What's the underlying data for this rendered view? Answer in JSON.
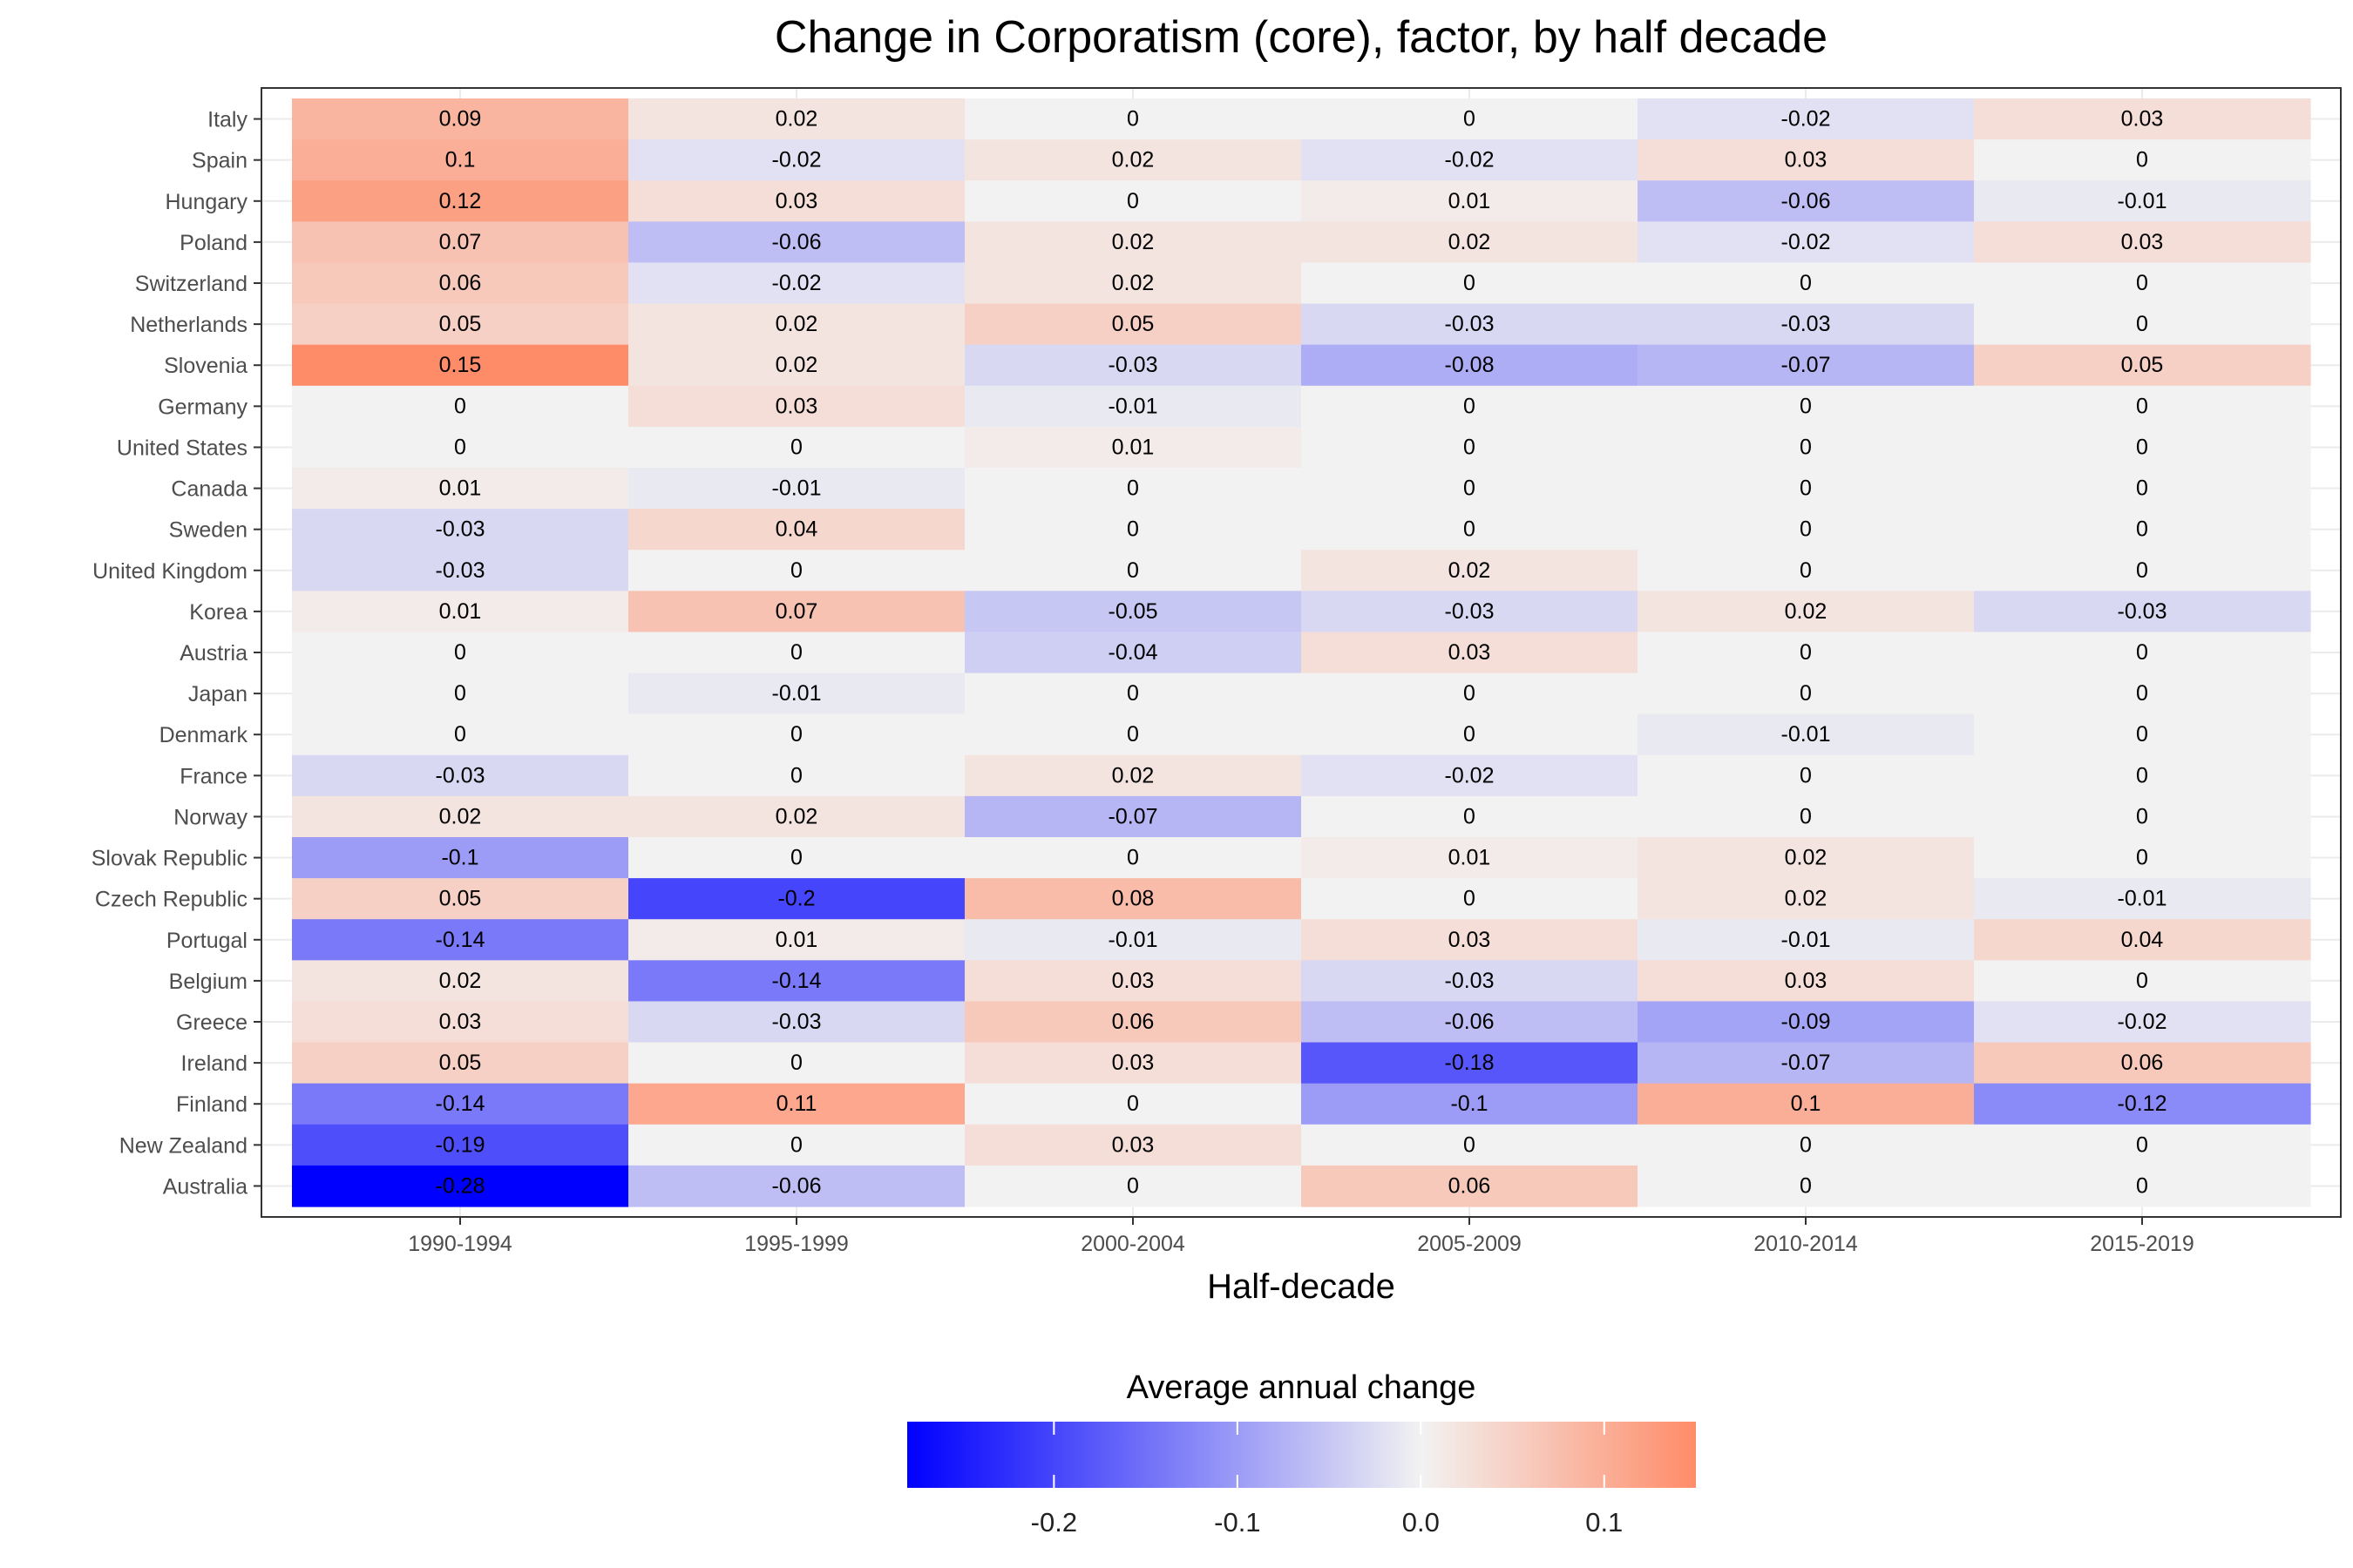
{
  "chart_data": {
    "type": "heatmap",
    "title": "Change in Corporatism (core), factor, by half decade",
    "xlabel": "Half-decade",
    "ylabel": "",
    "columns": [
      "1990-1994",
      "1995-1999",
      "2000-2004",
      "2005-2009",
      "2010-2014",
      "2015-2019"
    ],
    "rows": [
      "Italy",
      "Spain",
      "Hungary",
      "Poland",
      "Switzerland",
      "Netherlands",
      "Slovenia",
      "Germany",
      "United States",
      "Canada",
      "Sweden",
      "United Kingdom",
      "Korea",
      "Austria",
      "Japan",
      "Denmark",
      "France",
      "Norway",
      "Slovak Republic",
      "Czech Republic",
      "Portugal",
      "Belgium",
      "Greece",
      "Ireland",
      "Finland",
      "New Zealand",
      "Australia"
    ],
    "values": [
      [
        0.09,
        0.02,
        0,
        0,
        -0.02,
        0.03
      ],
      [
        0.1,
        -0.02,
        0.02,
        -0.02,
        0.03,
        0
      ],
      [
        0.12,
        0.03,
        0,
        0.01,
        -0.06,
        -0.01
      ],
      [
        0.07,
        -0.06,
        0.02,
        0.02,
        -0.02,
        0.03
      ],
      [
        0.06,
        -0.02,
        0.02,
        0,
        0,
        0
      ],
      [
        0.05,
        0.02,
        0.05,
        -0.03,
        -0.03,
        0
      ],
      [
        0.15,
        0.02,
        -0.03,
        -0.08,
        -0.07,
        0.05
      ],
      [
        0,
        0.03,
        -0.01,
        0,
        0,
        0
      ],
      [
        0,
        0,
        0.01,
        0,
        0,
        0
      ],
      [
        0.01,
        -0.01,
        0,
        0,
        0,
        0
      ],
      [
        -0.03,
        0.04,
        0,
        0,
        0,
        0
      ],
      [
        -0.03,
        0,
        0,
        0.02,
        0,
        0
      ],
      [
        0.01,
        0.07,
        -0.05,
        -0.03,
        0.02,
        -0.03
      ],
      [
        0,
        0,
        -0.04,
        0.03,
        0,
        0
      ],
      [
        0,
        -0.01,
        0,
        0,
        0,
        0
      ],
      [
        0,
        0,
        0,
        0,
        -0.01,
        0
      ],
      [
        -0.03,
        0,
        0.02,
        -0.02,
        0,
        0
      ],
      [
        0.02,
        0.02,
        -0.07,
        0,
        0,
        0
      ],
      [
        -0.1,
        0,
        0,
        0.01,
        0.02,
        0
      ],
      [
        0.05,
        -0.2,
        0.08,
        0,
        0.02,
        -0.01
      ],
      [
        -0.14,
        0.01,
        -0.01,
        0.03,
        -0.01,
        0.04
      ],
      [
        0.02,
        -0.14,
        0.03,
        -0.03,
        0.03,
        0
      ],
      [
        0.03,
        -0.03,
        0.06,
        -0.06,
        -0.09,
        -0.02
      ],
      [
        0.05,
        0,
        0.03,
        -0.18,
        -0.07,
        0.06
      ],
      [
        -0.14,
        0.11,
        0,
        -0.1,
        0.1,
        -0.12
      ],
      [
        -0.19,
        0,
        0.03,
        0,
        0,
        0
      ],
      [
        -0.28,
        -0.06,
        0,
        0.06,
        0,
        0
      ]
    ],
    "color_scale": {
      "title": "Average annual change",
      "low": "#0000ff",
      "mid": "#f2f2f2",
      "high": "#ff8c69",
      "limits": [
        -0.28,
        0.15
      ],
      "midpoint": 0,
      "ticks": [
        -0.2,
        -0.1,
        0.0,
        0.1
      ],
      "tick_labels": [
        "-0.2",
        "-0.1",
        "0.0",
        "0.1"
      ]
    },
    "legend_position": "bottom",
    "grid": true
  }
}
